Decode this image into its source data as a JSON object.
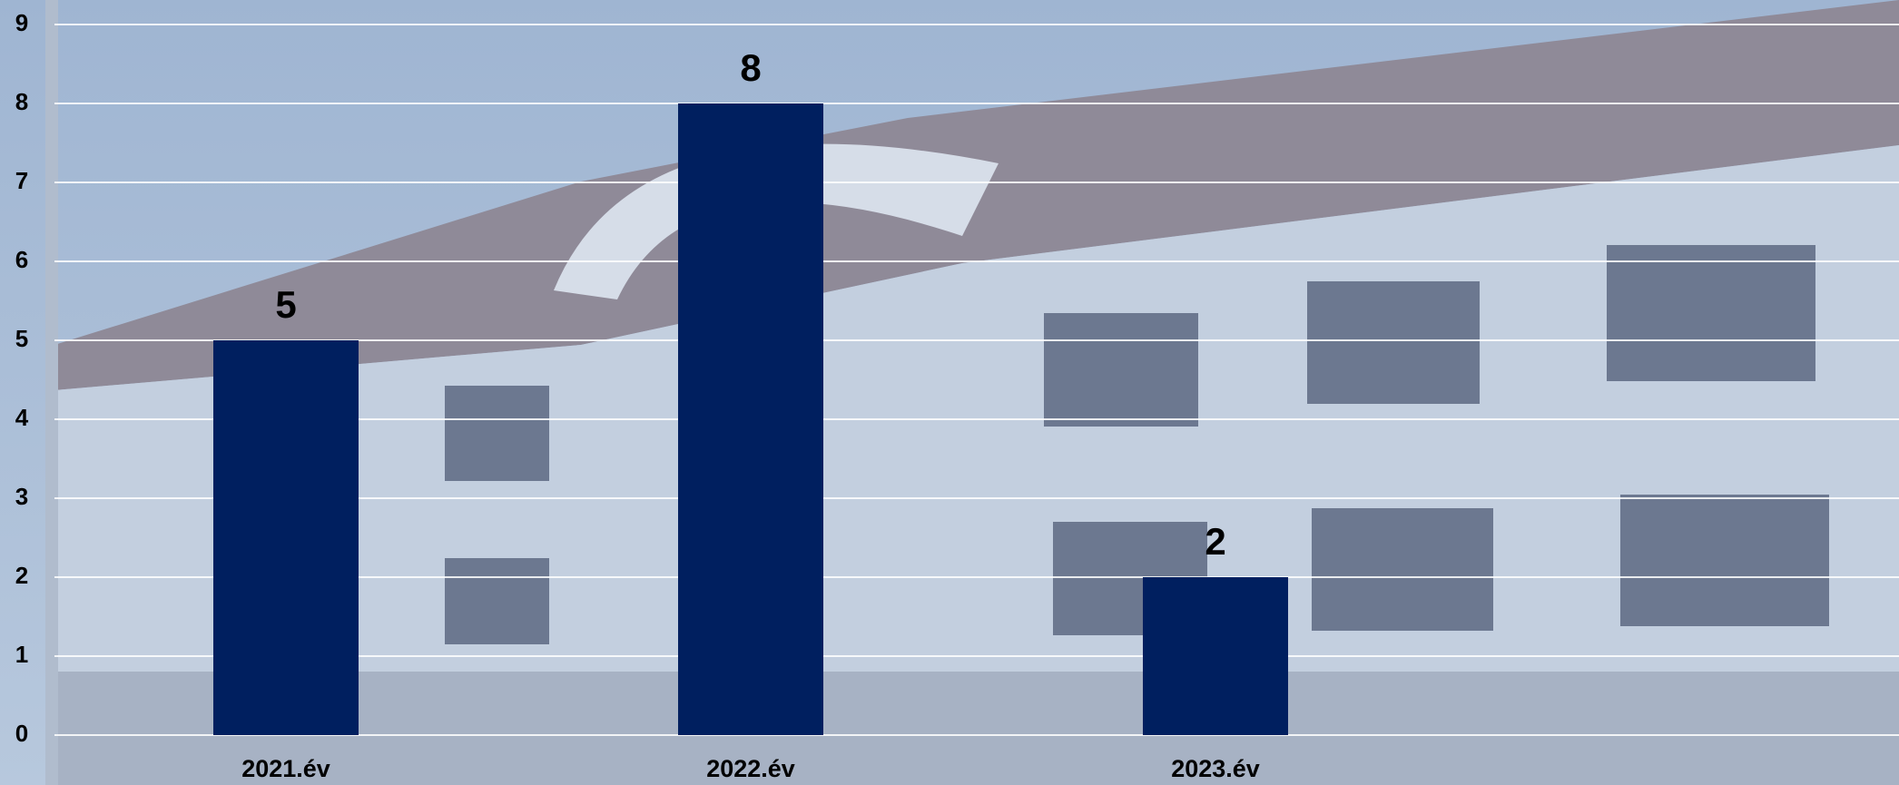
{
  "chart_data": {
    "type": "bar",
    "categories": [
      "2021.év",
      "2022.év",
      "2023.év"
    ],
    "values": [
      5,
      8,
      2
    ],
    "color": "#001f5f",
    "ylim": [
      0,
      9
    ],
    "yticks": [
      0,
      1,
      2,
      3,
      4,
      5,
      6,
      7,
      8,
      9
    ],
    "grid": true
  }
}
